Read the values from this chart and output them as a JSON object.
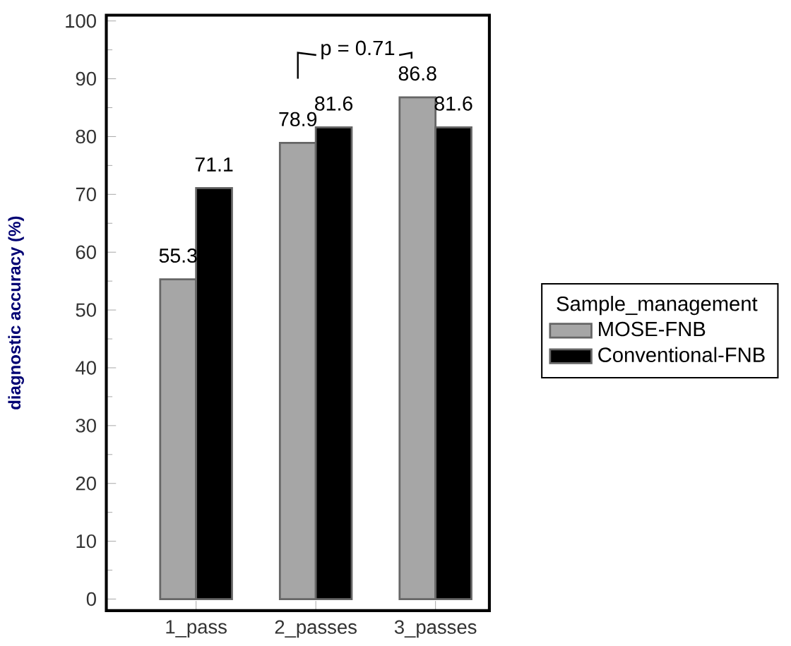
{
  "chart_data": {
    "type": "bar",
    "ylabel": "diagnostic accuracy (%)",
    "categories": [
      "1_pass",
      "2_passes",
      "3_passes"
    ],
    "series": [
      {
        "name": "MOSE-FNB",
        "color": "#a6a6a6",
        "values": [
          55.3,
          78.9,
          86.8
        ]
      },
      {
        "name": "Conventional-FNB",
        "color": "#000000",
        "values": [
          71.1,
          81.6,
          81.6
        ]
      }
    ],
    "legend_title": "Sample_management",
    "legend": "right",
    "ylim": [
      -2,
      101
    ],
    "yticks": [
      0,
      10,
      20,
      30,
      40,
      50,
      60,
      70,
      80,
      90,
      100
    ],
    "data_labels": true,
    "grid": false,
    "annotations": [
      "p = 0.71"
    ]
  }
}
